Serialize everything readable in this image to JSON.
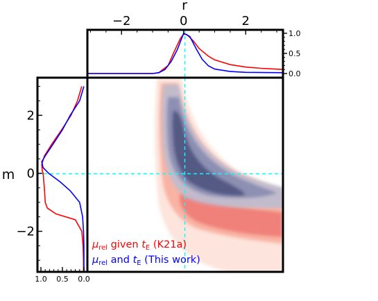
{
  "chart_data": {
    "type": "contour",
    "x_label": "r",
    "y_label": "m",
    "x_ticks": [
      -2,
      0,
      2
    ],
    "y_ticks": [
      -2,
      0,
      2
    ],
    "x_lim": [
      -3.1,
      3.2
    ],
    "y_lim": [
      -3.4,
      3.3
    ],
    "reference_lines": {
      "x": 0,
      "y": 0
    },
    "top_panel": {
      "y_ticks": [
        "0.0",
        "0.5",
        "1.0"
      ],
      "series": [
        {
          "name": "K21a",
          "color": "#ff0000",
          "x": [
            -3.1,
            -1.5,
            -1.0,
            -0.8,
            -0.5,
            -0.3,
            -0.1,
            0.0,
            0.1,
            0.3,
            0.5,
            0.8,
            1.0,
            1.5,
            2.0,
            2.5,
            3.2
          ],
          "y": [
            0.0,
            0.0,
            0.0,
            0.02,
            0.2,
            0.55,
            0.88,
            0.98,
            0.97,
            0.82,
            0.62,
            0.43,
            0.34,
            0.22,
            0.16,
            0.13,
            0.1
          ]
        },
        {
          "name": "This work",
          "color": "#0000ff",
          "x": [
            -3.1,
            -1.5,
            -1.0,
            -0.8,
            -0.6,
            -0.4,
            -0.2,
            0.0,
            0.2,
            0.4,
            0.6,
            0.8,
            1.0,
            1.5,
            2.0,
            3.2
          ],
          "y": [
            0.0,
            0.0,
            0.0,
            0.02,
            0.1,
            0.3,
            0.6,
            1.0,
            0.92,
            0.62,
            0.35,
            0.19,
            0.11,
            0.05,
            0.03,
            0.02
          ]
        }
      ]
    },
    "left_panel": {
      "x_ticks": [
        "1.0",
        "0.5",
        "0.0"
      ],
      "series": [
        {
          "name": "K21a",
          "color": "#ff0000",
          "m": [
            3.0,
            2.5,
            2.0,
            1.5,
            1.0,
            0.6,
            0.3,
            0.1,
            0.0,
            -0.5,
            -1.0,
            -1.2,
            -1.4,
            -1.6,
            -2.0,
            -2.5,
            -3.0,
            -3.4
          ],
          "density": [
            0.05,
            0.15,
            0.3,
            0.52,
            0.75,
            0.92,
            0.98,
            0.97,
            0.95,
            0.92,
            0.9,
            0.85,
            0.65,
            0.2,
            0.05,
            0.02,
            0.01,
            0.01
          ]
        },
        {
          "name": "This work",
          "color": "#0000ff",
          "m": [
            3.0,
            2.5,
            2.0,
            1.5,
            1.0,
            0.6,
            0.4,
            0.2,
            0.0,
            -0.3,
            -0.6,
            -1.0,
            -1.5,
            -2.0,
            -2.5,
            -3.0,
            -3.4
          ],
          "density": [
            0.0,
            0.1,
            0.32,
            0.5,
            0.72,
            0.9,
            0.98,
            0.95,
            0.82,
            0.55,
            0.32,
            0.1,
            0.03,
            0.01,
            0.0,
            0.0,
            0.0
          ]
        }
      ]
    },
    "legend": [
      {
        "prefix": "μ",
        "sub": "rel",
        "middle": " given ",
        "var": "t",
        "var_sub": "E",
        "suffix": " (K21a)",
        "color": "#ff0000"
      },
      {
        "prefix": "μ",
        "sub": "rel",
        "middle": " and ",
        "var": "t",
        "var_sub": "E",
        "suffix": " (This work)",
        "color": "#0000ff"
      }
    ]
  }
}
